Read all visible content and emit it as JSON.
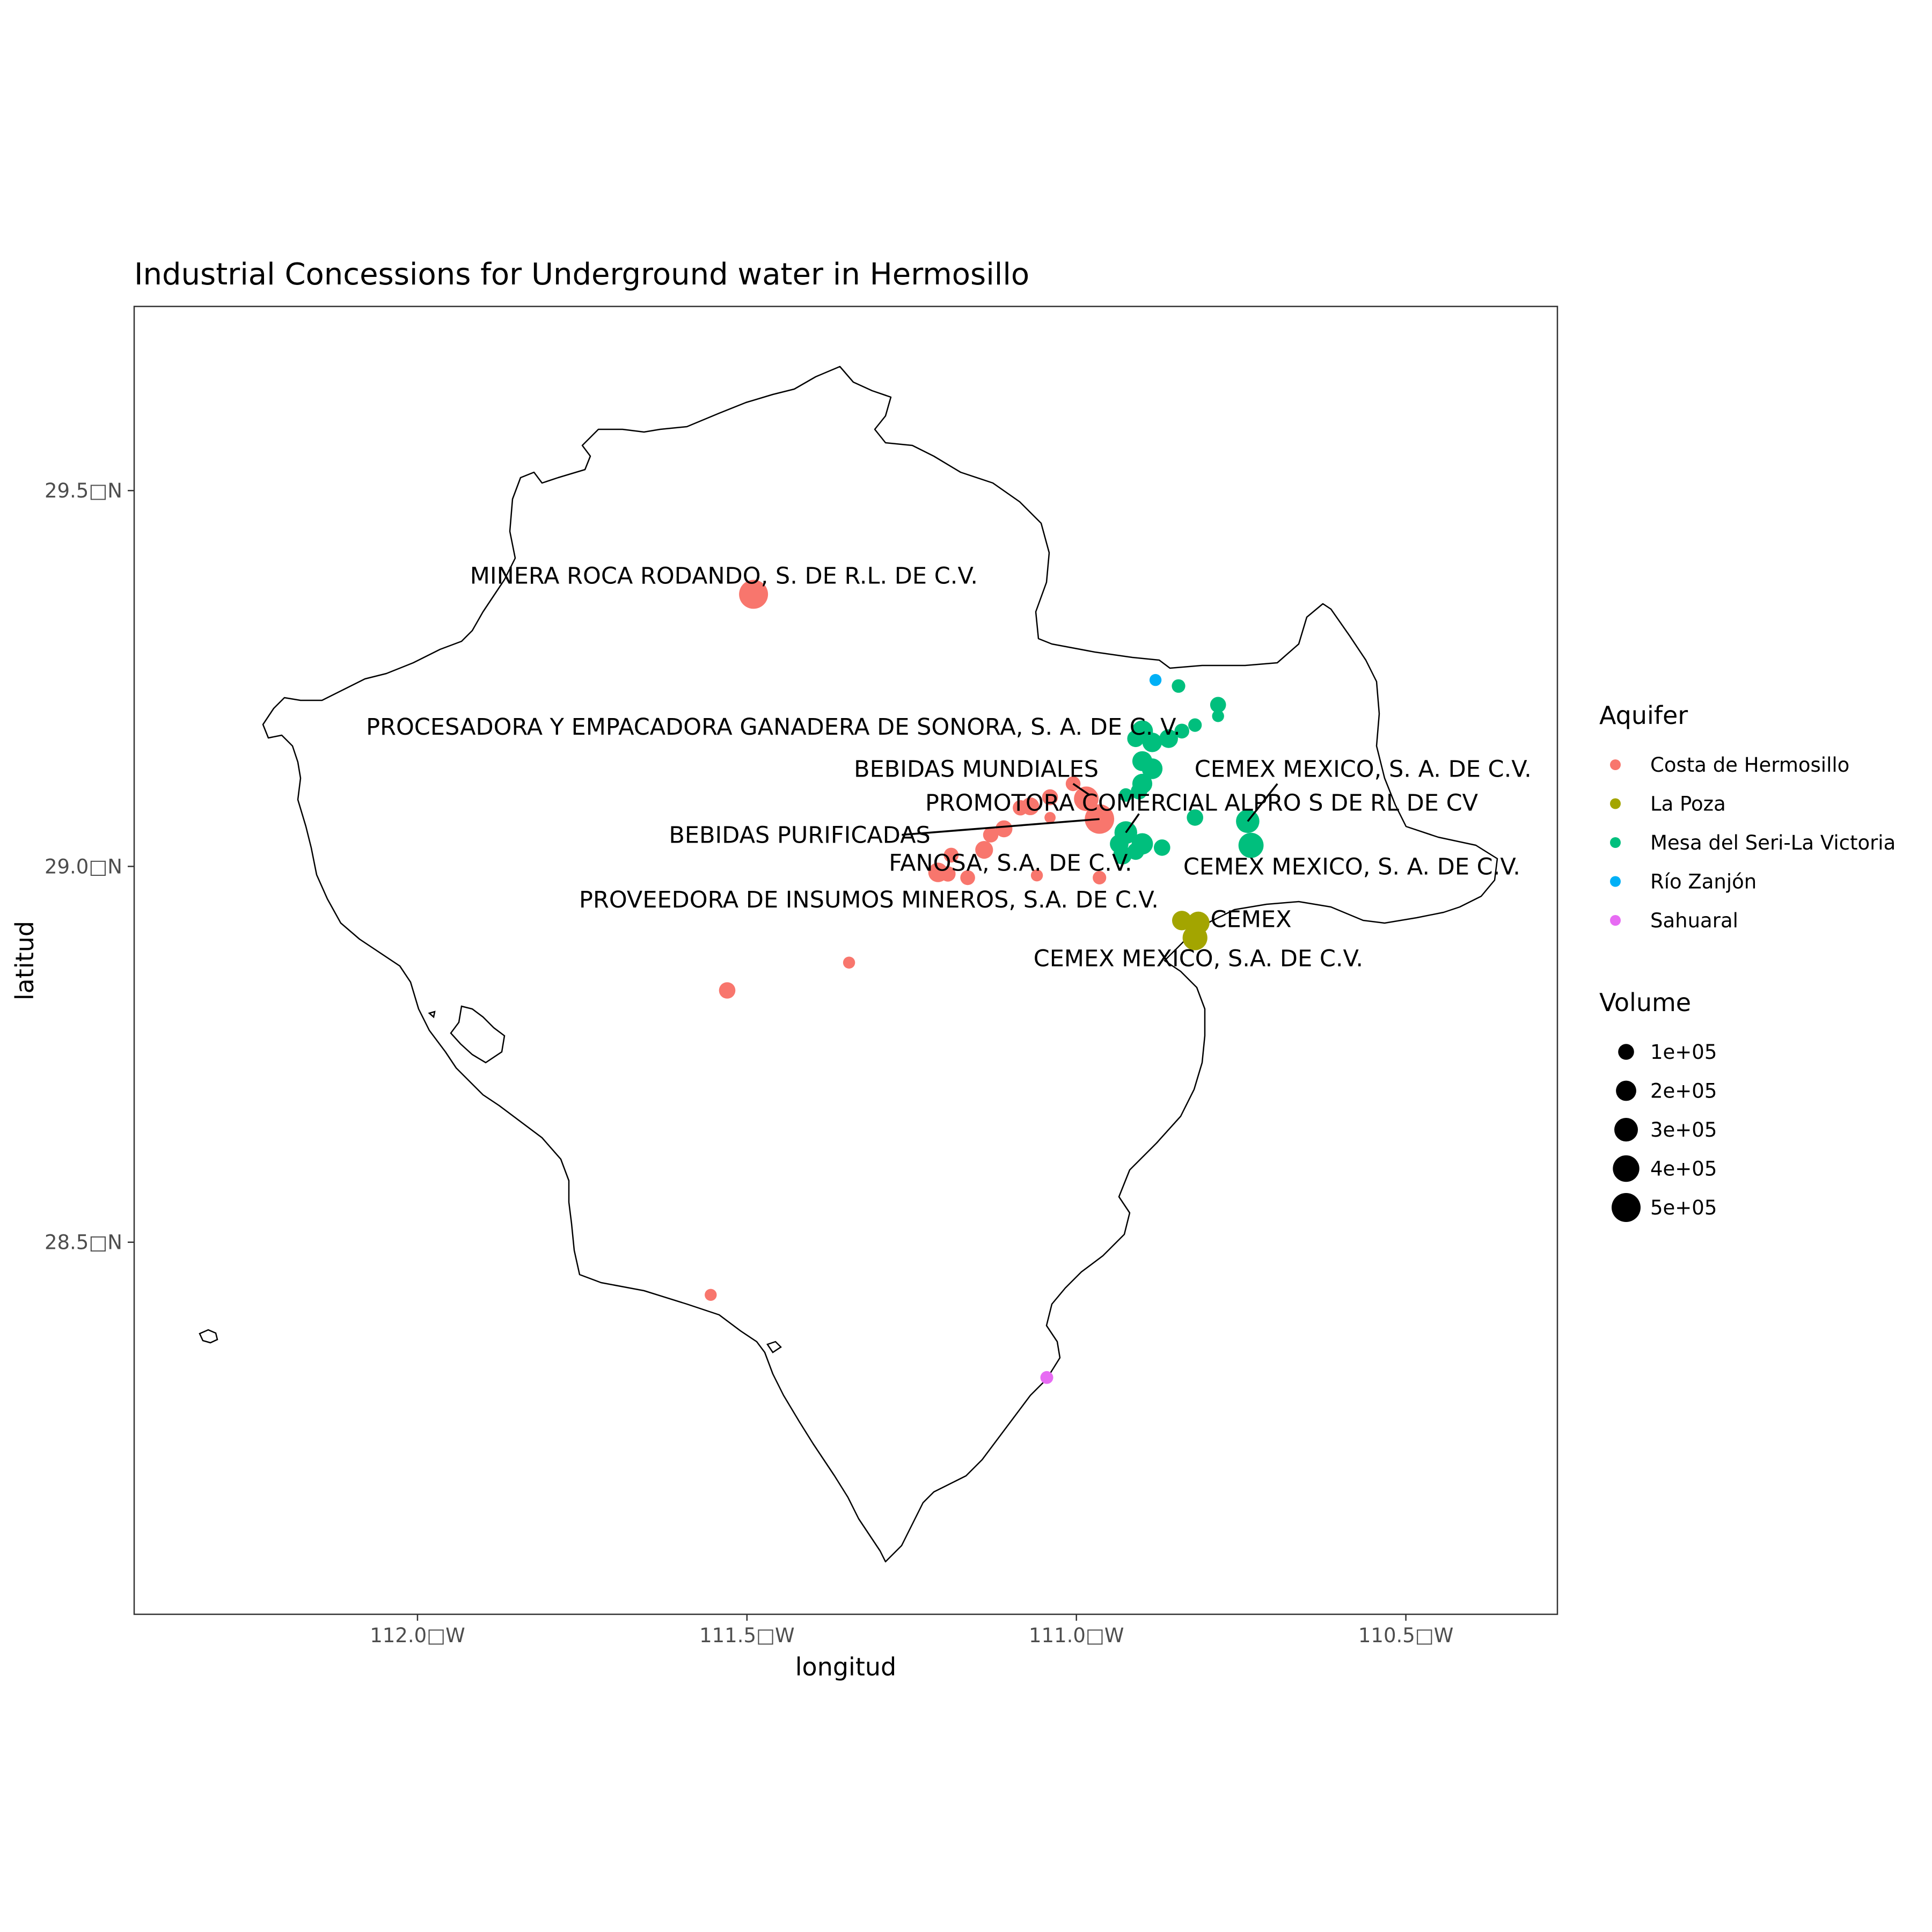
{
  "title": "Industrial Concessions for Underground water in Hermosillo",
  "x_axis_title": "longitud",
  "y_axis_title": "latitud",
  "chart_data": {
    "type": "scatter",
    "title": "Industrial Concessions for Underground water in Hermosillo",
    "xlabel": "longitud",
    "ylabel": "latitud",
    "xlim": [
      -112.43,
      -110.27
    ],
    "ylim": [
      28.005,
      29.745
    ],
    "x_ticks": [
      {
        "value": -112.0,
        "label": "112.0□W"
      },
      {
        "value": -111.5,
        "label": "111.5□W"
      },
      {
        "value": -111.0,
        "label": "111.0□W"
      },
      {
        "value": -110.5,
        "label": "110.5□W"
      }
    ],
    "y_ticks": [
      {
        "value": 29.5,
        "label": "29.5□N"
      },
      {
        "value": 29.0,
        "label": "29.0□N"
      },
      {
        "value": 28.5,
        "label": "28.5□N"
      }
    ],
    "grid": false,
    "legend_position": "right",
    "color_legend": {
      "title": "Aquifer",
      "items": [
        {
          "name": "Costa de Hermosillo",
          "color": "#F8766D"
        },
        {
          "name": "La Poza",
          "color": "#A3A500"
        },
        {
          "name": "Mesa del Seri-La Victoria",
          "color": "#00BF7D"
        },
        {
          "name": "Río Zanjón",
          "color": "#00B0F6"
        },
        {
          "name": "Sahuaral",
          "color": "#E76BF3"
        }
      ]
    },
    "size_legend": {
      "title": "Volume",
      "items": [
        {
          "label": "1e+05",
          "value": 100000
        },
        {
          "label": "2e+05",
          "value": 200000
        },
        {
          "label": "3e+05",
          "value": 300000
        },
        {
          "label": "4e+05",
          "value": 400000
        },
        {
          "label": "5e+05",
          "value": 500000
        }
      ]
    },
    "points": [
      {
        "lon": -111.49,
        "lat": 29.362,
        "volume": 500000,
        "aquifer": "Costa de Hermosillo"
      },
      {
        "lon": -110.965,
        "lat": 29.063,
        "volume": 520000,
        "aquifer": "Costa de Hermosillo"
      },
      {
        "lon": -110.985,
        "lat": 29.09,
        "volume": 330000,
        "aquifer": "Costa de Hermosillo"
      },
      {
        "lon": -111.07,
        "lat": 29.08,
        "volume": 140000,
        "aquifer": "Costa de Hermosillo"
      },
      {
        "lon": -111.04,
        "lat": 29.092,
        "volume": 100000,
        "aquifer": "Costa de Hermosillo"
      },
      {
        "lon": -111.005,
        "lat": 29.11,
        "volume": 80000,
        "aquifer": "Costa de Hermosillo"
      },
      {
        "lon": -111.085,
        "lat": 29.078,
        "volume": 90000,
        "aquifer": "Costa de Hermosillo"
      },
      {
        "lon": -111.04,
        "lat": 29.065,
        "volume": 30000,
        "aquifer": "Costa de Hermosillo"
      },
      {
        "lon": -111.11,
        "lat": 29.05,
        "volume": 120000,
        "aquifer": "Costa de Hermosillo"
      },
      {
        "lon": -111.13,
        "lat": 29.042,
        "volume": 90000,
        "aquifer": "Costa de Hermosillo"
      },
      {
        "lon": -111.14,
        "lat": 29.022,
        "volume": 140000,
        "aquifer": "Costa de Hermosillo"
      },
      {
        "lon": -111.19,
        "lat": 29.015,
        "volume": 80000,
        "aquifer": "Costa de Hermosillo"
      },
      {
        "lon": -111.21,
        "lat": 28.992,
        "volume": 180000,
        "aquifer": "Costa de Hermosillo"
      },
      {
        "lon": -111.195,
        "lat": 28.99,
        "volume": 90000,
        "aquifer": "Costa de Hermosillo"
      },
      {
        "lon": -111.165,
        "lat": 28.985,
        "volume": 80000,
        "aquifer": "Costa de Hermosillo"
      },
      {
        "lon": -111.06,
        "lat": 28.988,
        "volume": 40000,
        "aquifer": "Costa de Hermosillo"
      },
      {
        "lon": -110.965,
        "lat": 28.985,
        "volume": 60000,
        "aquifer": "Costa de Hermosillo"
      },
      {
        "lon": -111.345,
        "lat": 28.872,
        "volume": 40000,
        "aquifer": "Costa de Hermosillo"
      },
      {
        "lon": -111.53,
        "lat": 28.835,
        "volume": 110000,
        "aquifer": "Costa de Hermosillo"
      },
      {
        "lon": -111.555,
        "lat": 28.43,
        "volume": 40000,
        "aquifer": "Costa de Hermosillo"
      },
      {
        "lon": -110.84,
        "lat": 28.928,
        "volume": 180000,
        "aquifer": "La Poza"
      },
      {
        "lon": -110.815,
        "lat": 28.925,
        "volume": 260000,
        "aquifer": "La Poza"
      },
      {
        "lon": -110.82,
        "lat": 28.905,
        "volume": 340000,
        "aquifer": "La Poza"
      },
      {
        "lon": -110.9,
        "lat": 29.18,
        "volume": 230000,
        "aquifer": "Mesa del Seri-La Victoria"
      },
      {
        "lon": -110.885,
        "lat": 29.165,
        "volume": 180000,
        "aquifer": "Mesa del Seri-La Victoria"
      },
      {
        "lon": -110.91,
        "lat": 29.17,
        "volume": 120000,
        "aquifer": "Mesa del Seri-La Victoria"
      },
      {
        "lon": -110.86,
        "lat": 29.17,
        "volume": 160000,
        "aquifer": "Mesa del Seri-La Victoria"
      },
      {
        "lon": -110.84,
        "lat": 29.18,
        "volume": 80000,
        "aquifer": "Mesa del Seri-La Victoria"
      },
      {
        "lon": -110.82,
        "lat": 29.188,
        "volume": 60000,
        "aquifer": "Mesa del Seri-La Victoria"
      },
      {
        "lon": -110.845,
        "lat": 29.24,
        "volume": 60000,
        "aquifer": "Mesa del Seri-La Victoria"
      },
      {
        "lon": -110.785,
        "lat": 29.215,
        "volume": 100000,
        "aquifer": "Mesa del Seri-La Victoria"
      },
      {
        "lon": -110.785,
        "lat": 29.2,
        "volume": 40000,
        "aquifer": "Mesa del Seri-La Victoria"
      },
      {
        "lon": -110.9,
        "lat": 29.14,
        "volume": 190000,
        "aquifer": "Mesa del Seri-La Victoria"
      },
      {
        "lon": -110.885,
        "lat": 29.13,
        "volume": 210000,
        "aquifer": "Mesa del Seri-La Victoria"
      },
      {
        "lon": -110.9,
        "lat": 29.11,
        "volume": 190000,
        "aquifer": "Mesa del Seri-La Victoria"
      },
      {
        "lon": -110.905,
        "lat": 29.1,
        "volume": 110000,
        "aquifer": "Mesa del Seri-La Victoria"
      },
      {
        "lon": -110.925,
        "lat": 29.095,
        "volume": 60000,
        "aquifer": "Mesa del Seri-La Victoria"
      },
      {
        "lon": -110.925,
        "lat": 29.045,
        "volume": 270000,
        "aquifer": "Mesa del Seri-La Victoria"
      },
      {
        "lon": -110.935,
        "lat": 29.03,
        "volume": 160000,
        "aquifer": "Mesa del Seri-La Victoria"
      },
      {
        "lon": -110.9,
        "lat": 29.03,
        "volume": 230000,
        "aquifer": "Mesa del Seri-La Victoria"
      },
      {
        "lon": -110.93,
        "lat": 29.015,
        "volume": 160000,
        "aquifer": "Mesa del Seri-La Victoria"
      },
      {
        "lon": -110.91,
        "lat": 29.02,
        "volume": 120000,
        "aquifer": "Mesa del Seri-La Victoria"
      },
      {
        "lon": -110.87,
        "lat": 29.025,
        "volume": 110000,
        "aquifer": "Mesa del Seri-La Victoria"
      },
      {
        "lon": -110.82,
        "lat": 29.065,
        "volume": 110000,
        "aquifer": "Mesa del Seri-La Victoria"
      },
      {
        "lon": -110.74,
        "lat": 29.06,
        "volume": 290000,
        "aquifer": "Mesa del Seri-La Victoria"
      },
      {
        "lon": -110.735,
        "lat": 29.028,
        "volume": 350000,
        "aquifer": "Mesa del Seri-La Victoria"
      },
      {
        "lon": -110.88,
        "lat": 29.248,
        "volume": 40000,
        "aquifer": "Río Zanjón"
      },
      {
        "lon": -111.045,
        "lat": 28.32,
        "volume": 50000,
        "aquifer": "Sahuaral"
      }
    ],
    "labels": [
      {
        "text": "MINERA ROCA RODANDO, S. DE R.L. DE C.V.",
        "lon": -111.535,
        "lat": 29.387,
        "anchor": "middle"
      },
      {
        "text": "PROCESADORA Y EMPACADORA GANADERA DE SONORA, S. A. DE C. V.",
        "lon": -111.46,
        "lat": 29.186,
        "anchor": "middle"
      },
      {
        "text": "BEBIDAS MUNDIALES",
        "lon": -111.152,
        "lat": 29.13,
        "anchor": "middle",
        "leader": {
          "lon1": -111.005,
          "lat1": 29.11,
          "lon2": -110.98,
          "lat2": 29.095
        }
      },
      {
        "text": "CEMEX MEXICO, S. A. DE C.V.",
        "lon": -110.565,
        "lat": 29.13,
        "anchor": "middle",
        "leader": {
          "lon1": -110.695,
          "lat1": 29.11,
          "lon2": -110.74,
          "lat2": 29.06
        }
      },
      {
        "text": "PROMOTORA COMERCIAL ALPRO S DE RL DE CV",
        "lon": -110.81,
        "lat": 29.085,
        "anchor": "middle",
        "leader": {
          "lon1": -110.905,
          "lat1": 29.07,
          "lon2": -110.925,
          "lat2": 29.045
        }
      },
      {
        "text": "BEBIDAS PURIFICADAS",
        "lon": -111.42,
        "lat": 29.042,
        "anchor": "middle",
        "leader": {
          "lon1": -111.265,
          "lat1": 29.042,
          "lon2": -110.965,
          "lat2": 29.063
        }
      },
      {
        "text": "FANOSA, S.A. DE C.V.",
        "lon": -111.1,
        "lat": 29.005,
        "anchor": "middle"
      },
      {
        "text": "CEMEX MEXICO, S. A. DE C.V.",
        "lon": -110.582,
        "lat": 29.0,
        "anchor": "middle"
      },
      {
        "text": "PROVEEDORA DE INSUMOS MINEROS, S.A. DE C.V.",
        "lon": -111.315,
        "lat": 28.956,
        "anchor": "middle"
      },
      {
        "text": "CEMEX",
        "lon": -110.735,
        "lat": 28.93,
        "anchor": "middle"
      },
      {
        "text": "CEMEX MEXICO, S.A. DE C.V.",
        "lon": -110.815,
        "lat": 28.878,
        "anchor": "middle"
      }
    ]
  }
}
